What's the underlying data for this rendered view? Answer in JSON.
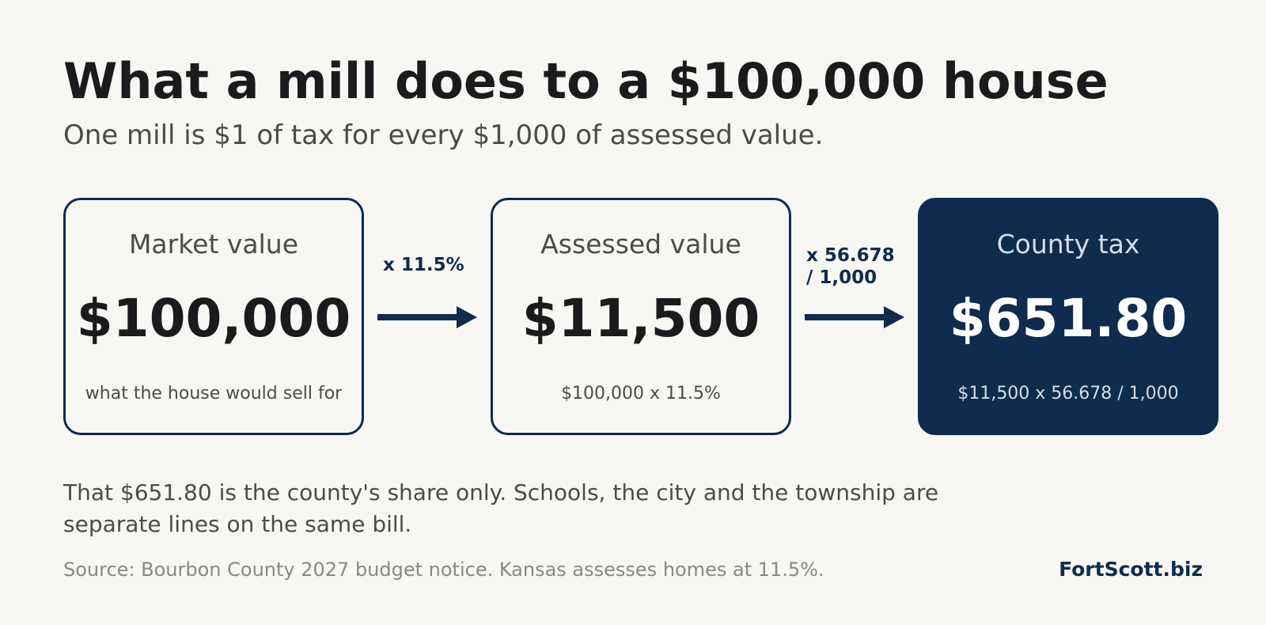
{
  "title": "What a mill does to a $100,000 house",
  "subtitle": "One mill is $1 of tax for every $1,000 of assessed value.",
  "colors": {
    "background": "#f8f7f3",
    "navy": "#0f2b4d",
    "text_dark": "#1b1b1e",
    "text_muted": "#4d4b49"
  },
  "boxes": [
    {
      "label": "Market value",
      "value": "$100,000",
      "note": "what the house would sell for"
    },
    {
      "label": "Assessed value",
      "value": "$11,500",
      "note": "$100,000 x 11.5%"
    },
    {
      "label": "County tax",
      "value": "$651.80",
      "note": "$11,500 x 56.678 / 1,000"
    }
  ],
  "operations": [
    {
      "line1": "x 11.5%",
      "line2": ""
    },
    {
      "line1": "x 56.678",
      "line2": "/ 1,000"
    }
  ],
  "footnote": "That $651.80 is the county's share only. Schools, the city and the township are separate lines on the same bill.",
  "source": "Source: Bourbon County 2027 budget notice. Kansas assesses homes at 11.5%.",
  "brand": "FortScott.biz"
}
